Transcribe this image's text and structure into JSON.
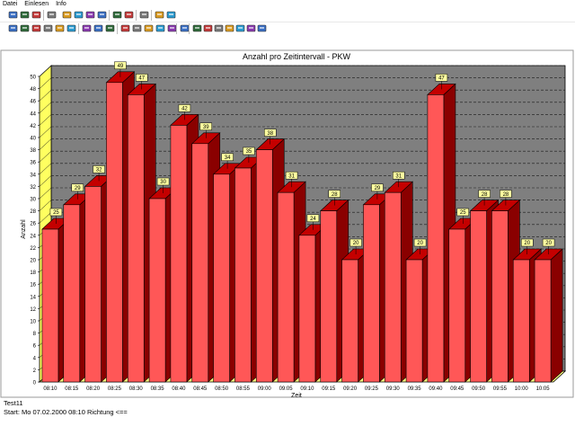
{
  "menu": {
    "items": [
      "Datei",
      "Einlesen",
      "Info"
    ]
  },
  "toolbar1": {
    "buttons": [
      "open-icon",
      "save-icon",
      "save-as-icon",
      "filter-icon",
      "copy-icon",
      "folder-icon",
      "bar-chart-icon",
      "tools-icon",
      "clock-icon",
      "stop-icon",
      "print-icon",
      "info-icon",
      "globe-icon"
    ]
  },
  "toolbar2": {
    "buttons": [
      "car-red-icon",
      "car-red2-icon",
      "car-red3-icon",
      "truck-icon",
      "bus-icon",
      "bike-icon",
      "truck-red-icon",
      "truck-red2-icon",
      "trailer-icon",
      "chart-a-icon",
      "chart-b-icon",
      "chart-c-icon",
      "chart-d-icon",
      "chart-e-icon",
      "arrow-left-icon",
      "cursor-gray-icon",
      "cursor-gray2-icon",
      "nav-left-icon",
      "nav-right-icon",
      "play-icon",
      "cursor-icon",
      "cursor-select-icon"
    ]
  },
  "chart_data": {
    "type": "bar",
    "title": "Anzahl pro Zeitintervall - PKW",
    "xlabel": "Zeit",
    "ylabel": "Anzahl",
    "ylim": [
      0,
      50
    ],
    "yticks": [
      0,
      2,
      4,
      6,
      8,
      10,
      12,
      14,
      16,
      18,
      20,
      22,
      24,
      26,
      28,
      30,
      32,
      34,
      36,
      38,
      40,
      42,
      44,
      46,
      48,
      50
    ],
    "categories": [
      "08:10",
      "08:15",
      "08:20",
      "08:25",
      "08:30",
      "08:35",
      "08:40",
      "08:45",
      "08:50",
      "08:55",
      "09:00",
      "09:05",
      "09:10",
      "09:15",
      "09:20",
      "09:25",
      "09:30",
      "09:35",
      "09:40",
      "09:45",
      "09:50",
      "09:55",
      "10:00",
      "10:05"
    ],
    "values": [
      25,
      29,
      32,
      49,
      47,
      30,
      42,
      39,
      34,
      35,
      38,
      31,
      24,
      28,
      20,
      29,
      31,
      20,
      47,
      25,
      28,
      28,
      20,
      20
    ],
    "grid": true,
    "colors": {
      "bar_front": "#ff5757",
      "bar_side": "#8a0000",
      "bar_top": "#c40000",
      "wall": "#7f7f7f",
      "floor": "#ffff80",
      "label_bg": "#ffffa0"
    }
  },
  "footer": {
    "line1": "Test11",
    "line2": "Start: Mo  07.02.2000  08:10   Richtung  <=="
  }
}
